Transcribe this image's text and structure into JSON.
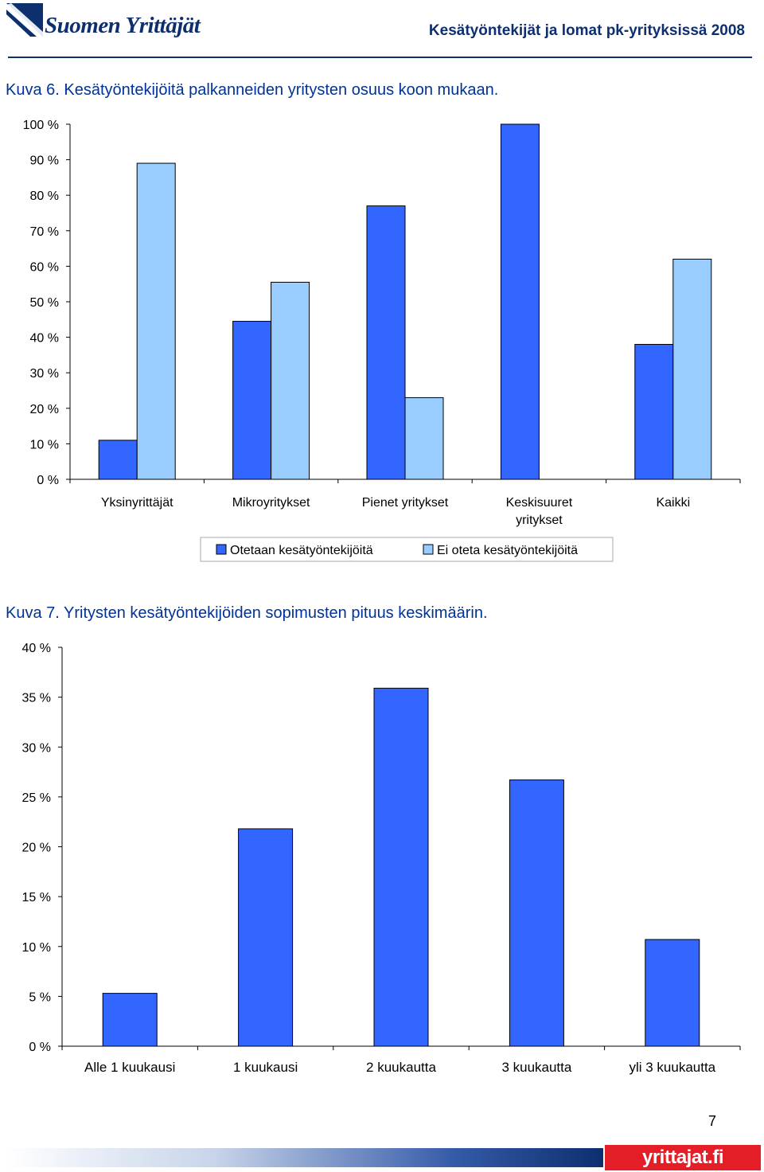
{
  "header": {
    "logo_text": "Suomen Yrittäjät",
    "document_title": "Kesätyöntekijät ja lomat pk-yrityksissä 2008"
  },
  "colors": {
    "brand_navy": "#0d2f6e",
    "caption_blue": "#003399",
    "series_dark": "#3366ff",
    "series_light": "#99ccff",
    "footer_red": "#e41e26"
  },
  "captions": {
    "kuva6": "Kuva 6. Kesätyöntekijöitä palkanneiden yritysten osuus koon mukaan.",
    "kuva7": "Kuva 7. Yritysten kesätyöntekijöiden sopimusten pituus keskimäärin."
  },
  "chart_data": [
    {
      "type": "bar",
      "title": "",
      "xlabel": "",
      "ylabel": "",
      "ylim": [
        0,
        100
      ],
      "y_ticks": [
        "0 %",
        "10 %",
        "20 %",
        "30 %",
        "40 %",
        "50 %",
        "60 %",
        "70 %",
        "80 %",
        "90 %",
        "100 %"
      ],
      "categories": [
        "Yksinyrittäjät",
        "Mikroyritykset",
        "Pienet yritykset",
        "Keskisuuret yritykset",
        "Kaikki"
      ],
      "series": [
        {
          "name": "Otetaan kesätyöntekijöitä",
          "values": [
            11,
            44.5,
            77,
            100,
            38
          ]
        },
        {
          "name": "Ei oteta kesätyöntekijöitä",
          "values": [
            89,
            55.5,
            23,
            0,
            62
          ]
        }
      ],
      "grid": false,
      "legend": "bottom"
    },
    {
      "type": "bar",
      "title": "",
      "xlabel": "",
      "ylabel": "",
      "ylim": [
        0,
        40
      ],
      "y_ticks": [
        "0 %",
        "5 %",
        "10 %",
        "15 %",
        "20 %",
        "25 %",
        "30 %",
        "35 %",
        "40 %"
      ],
      "categories": [
        "Alle 1 kuukausi",
        "1 kuukausi",
        "2 kuukautta",
        "3 kuukautta",
        "yli 3 kuukautta"
      ],
      "series": [
        {
          "values": [
            5.3,
            21.8,
            35.9,
            26.7,
            10.7
          ]
        }
      ],
      "grid": false,
      "legend": "none"
    }
  ],
  "footer": {
    "page_number": "7",
    "logo_text": "yrittajat.fi"
  }
}
